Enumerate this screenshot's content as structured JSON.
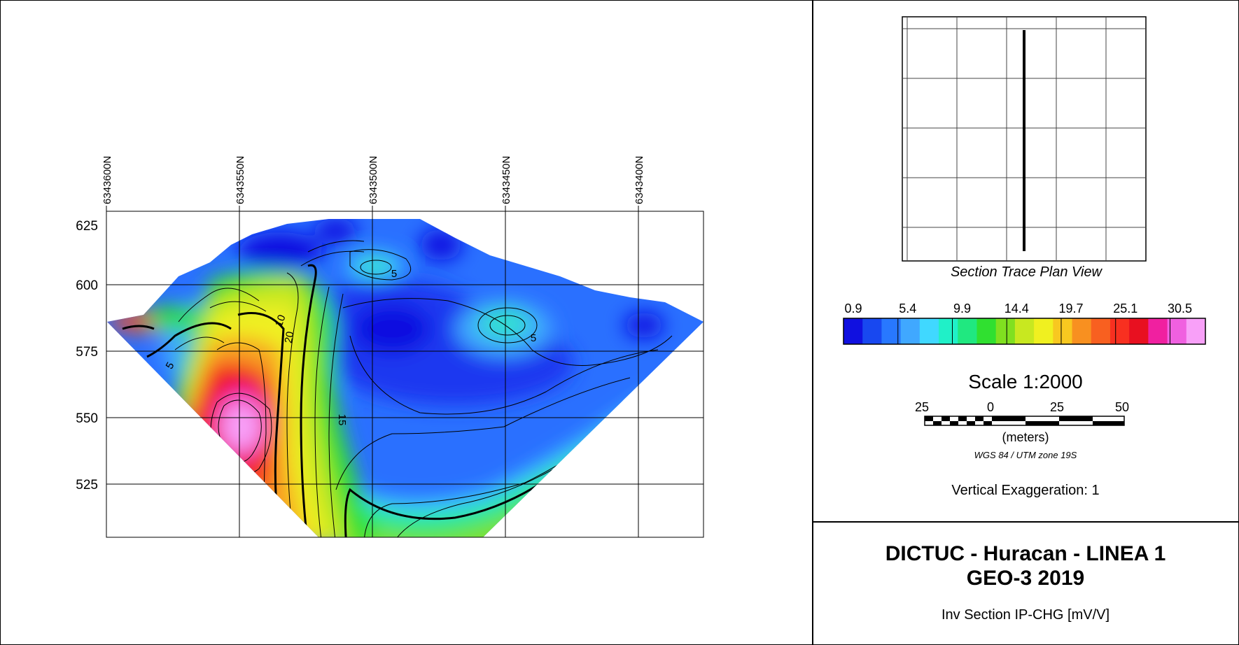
{
  "chart_data": {
    "type": "heatmap",
    "title": "DICTUC - Huracan - LINEA 1",
    "x_tick_labels": [
      "6343600N",
      "6343550N",
      "6343500N",
      "6343450N",
      "6343400N"
    ],
    "y_tick_labels": [
      "625",
      "600",
      "575",
      "550",
      "525"
    ],
    "ylim": [
      505,
      628
    ],
    "grid": true,
    "contour_labels": [
      "10",
      "20",
      "5",
      "15",
      "5",
      "5"
    ],
    "colorscale": {
      "tick_labels": [
        "0.9",
        "5.4",
        "9.9",
        "14.4",
        "19.7",
        "25.1",
        "30.5"
      ],
      "colors": [
        "#1010e0",
        "#1848f0",
        "#2878ff",
        "#40a8ff",
        "#40d8ff",
        "#20f0c8",
        "#20e880",
        "#30e030",
        "#80e020",
        "#c8e820",
        "#f0f020",
        "#f8c820",
        "#f89020",
        "#f86020",
        "#f83020",
        "#e81020",
        "#f020a0",
        "#f060e0",
        "#f8a0f8"
      ]
    }
  },
  "plan_view": {
    "caption": "Section Trace Plan View"
  },
  "scale": {
    "title": "Scale 1:2000",
    "labels": [
      "25",
      "0",
      "25",
      "50"
    ],
    "units": "(meters)",
    "projection": "WGS 84 / UTM zone 19S"
  },
  "vertical_exaggeration": "Vertical Exaggeration: 1",
  "title_block": {
    "line1": "DICTUC - Huracan - LINEA 1",
    "line2": "GEO-3 2019",
    "subtitle": "Inv Section IP-CHG [mV/V]"
  }
}
